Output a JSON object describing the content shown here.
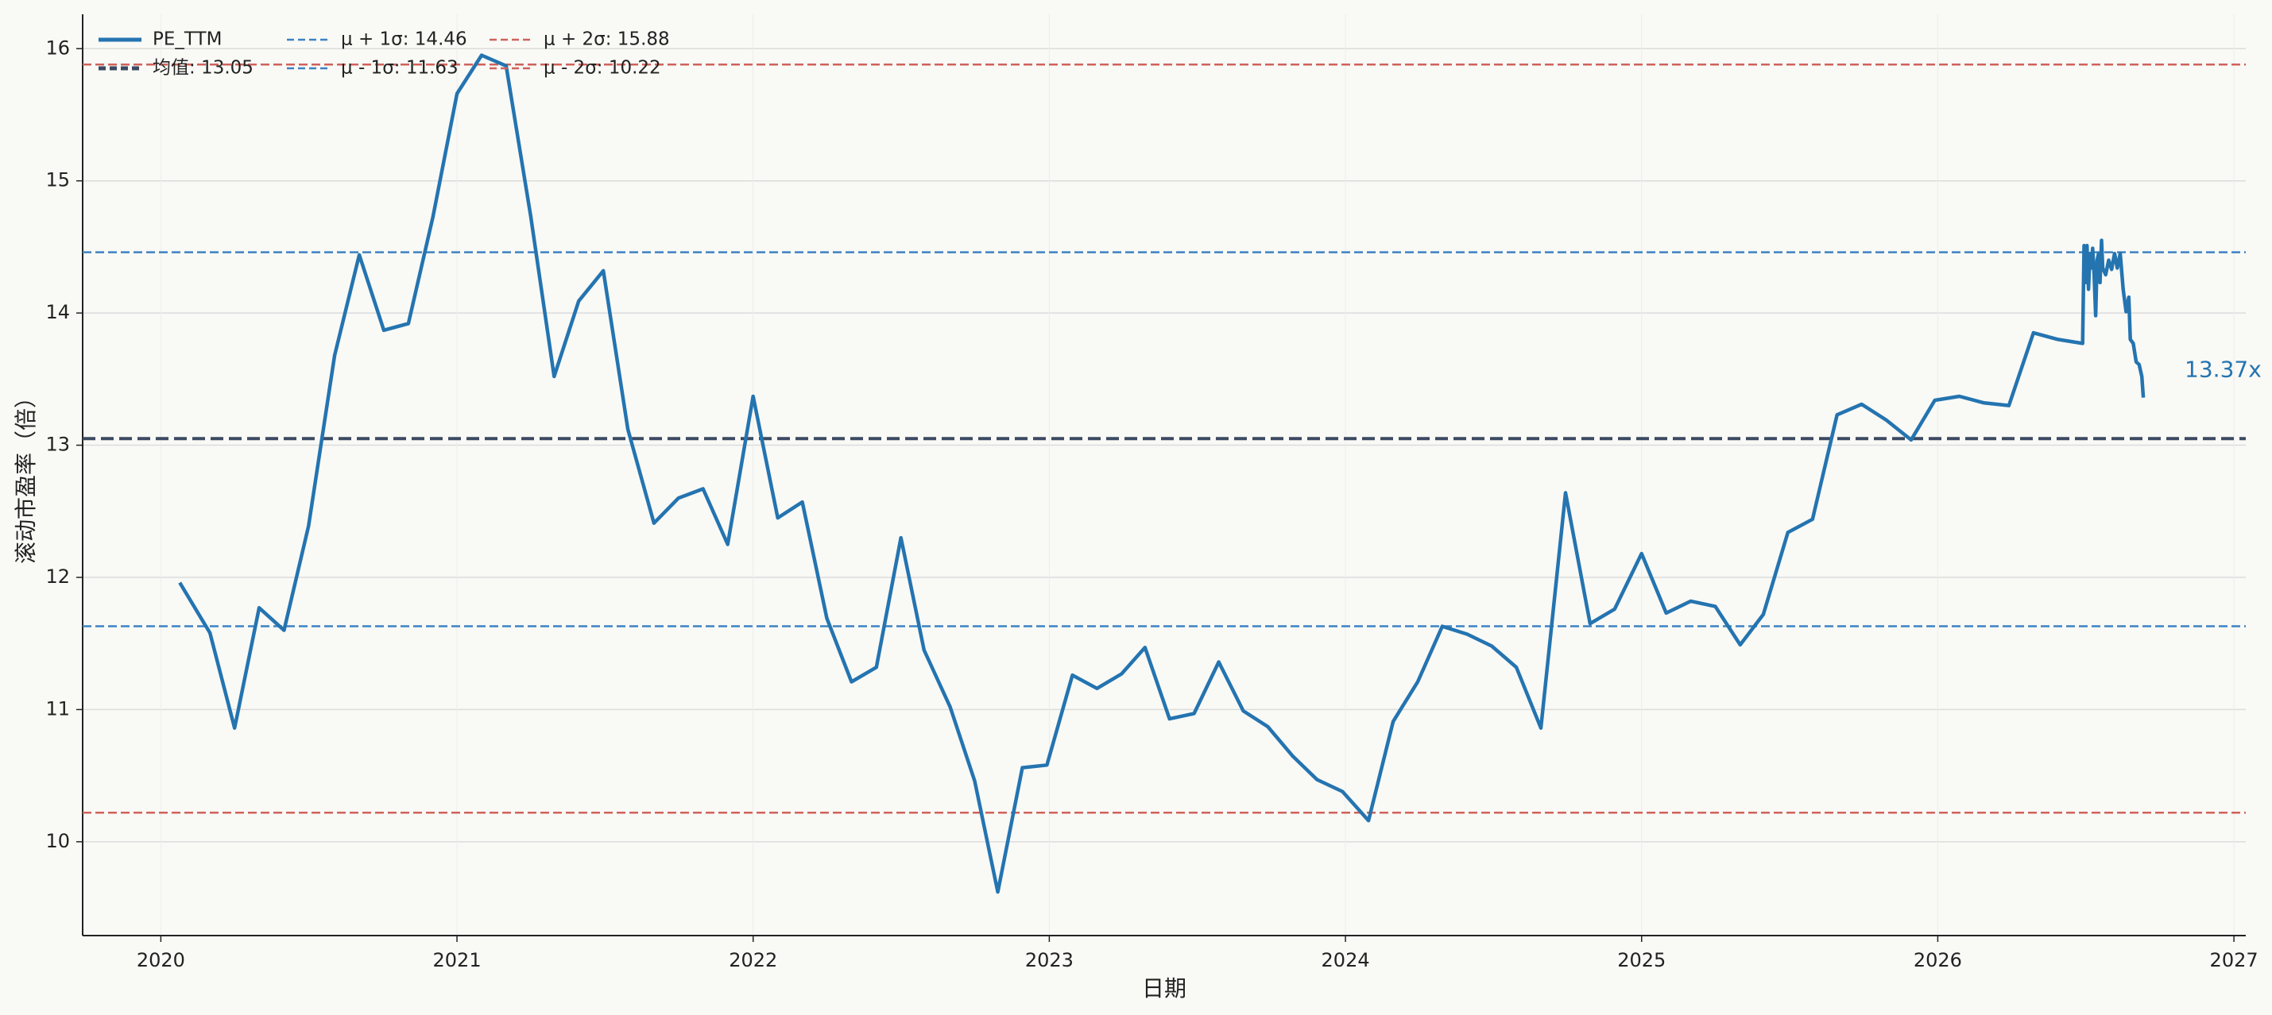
{
  "chart_data": {
    "type": "line",
    "x_label": "日期",
    "y_label": "滚动市盈率（倍）",
    "annotation": "13.37x",
    "xlim": [
      2019.736,
      2027.04
    ],
    "ylim": [
      9.29,
      16.26
    ],
    "xticks": [
      2020,
      2021,
      2022,
      2023,
      2024,
      2025,
      2026,
      2027
    ],
    "yticks": [
      10,
      11,
      12,
      13,
      14,
      15,
      16
    ],
    "grid": true,
    "legend": "upper-left",
    "series": [
      {
        "name": "PE_TTM",
        "color": "#2474b0",
        "x": [
          2020.064,
          2020.166,
          2020.249,
          2020.332,
          2020.416,
          2020.499,
          2020.587,
          2020.67,
          2020.753,
          2020.836,
          2020.919,
          2021.0,
          2021.083,
          2021.166,
          2021.249,
          2021.328,
          2021.411,
          2021.494,
          2021.577,
          2021.665,
          2021.748,
          2021.831,
          2021.914,
          2022.0,
          2022.083,
          2022.166,
          2022.249,
          2022.332,
          2022.416,
          2022.499,
          2022.577,
          2022.665,
          2022.748,
          2022.826,
          2022.909,
          2022.992,
          2023.078,
          2023.161,
          2023.244,
          2023.323,
          2023.406,
          2023.489,
          2023.572,
          2023.655,
          2023.738,
          2023.821,
          2023.904,
          2023.99,
          2024.078,
          2024.161,
          2024.244,
          2024.327,
          2024.411,
          2024.494,
          2024.577,
          2024.66,
          2024.743,
          2024.826,
          2024.909,
          2025.0,
          2025.083,
          2025.166,
          2025.249,
          2025.333,
          2025.411,
          2025.494,
          2025.577,
          2025.66,
          2025.743,
          2025.826,
          2025.91,
          2025.99,
          2026.073,
          2026.156,
          2026.24,
          2026.323,
          2026.406,
          2026.489,
          2026.494,
          2026.499,
          2026.504,
          2026.509,
          2026.514,
          2026.518,
          2026.523,
          2026.528,
          2026.533,
          2026.538,
          2026.543,
          2026.548,
          2026.553,
          2026.557,
          2026.567,
          2026.577,
          2026.587,
          2026.597,
          2026.606,
          2026.616,
          2026.626,
          2026.636,
          2026.645,
          2026.65,
          2026.66,
          2026.67,
          2026.68,
          2026.689,
          2026.694
        ],
        "values": [
          11.96,
          11.58,
          10.86,
          11.77,
          11.6,
          12.39,
          13.68,
          14.44,
          13.87,
          13.92,
          14.73,
          15.66,
          15.95,
          15.87,
          14.73,
          13.52,
          14.09,
          14.32,
          13.12,
          12.41,
          12.6,
          12.67,
          12.25,
          13.37,
          12.45,
          12.57,
          11.69,
          11.21,
          11.32,
          12.3,
          11.45,
          11.02,
          10.46,
          9.62,
          10.56,
          10.58,
          11.26,
          11.16,
          11.27,
          11.47,
          10.93,
          10.97,
          11.36,
          10.99,
          10.87,
          10.65,
          10.47,
          10.38,
          10.16,
          10.91,
          11.21,
          11.63,
          11.57,
          11.48,
          11.32,
          10.86,
          12.64,
          11.65,
          11.76,
          12.18,
          11.73,
          11.82,
          11.78,
          11.49,
          11.72,
          12.34,
          12.44,
          13.23,
          13.31,
          13.19,
          13.04,
          13.34,
          13.37,
          13.32,
          13.3,
          13.85,
          13.8,
          13.77,
          14.51,
          14.23,
          14.51,
          14.18,
          14.45,
          14.34,
          14.49,
          14.29,
          13.98,
          14.4,
          14.45,
          14.23,
          14.55,
          14.34,
          14.29,
          14.4,
          14.33,
          14.45,
          14.34,
          14.45,
          14.18,
          14.01,
          14.12,
          13.8,
          13.77,
          13.63,
          13.61,
          13.52,
          13.36
        ]
      }
    ],
    "hlines": [
      {
        "name": "均值: 13.05",
        "value": 13.05,
        "color": "#3b4a62",
        "width": 4
      },
      {
        "name": "μ + 1σ: 14.46",
        "value": 14.46,
        "color": "#3d82c2",
        "width": 2.5
      },
      {
        "name": "μ - 1σ: 11.63",
        "value": 11.63,
        "color": "#3d82c2",
        "width": 2.5
      },
      {
        "name": "μ + 2σ: 15.88",
        "value": 15.88,
        "color": "#d0625a",
        "width": 2.5
      },
      {
        "name": "μ - 2σ: 10.22",
        "value": 10.22,
        "color": "#d0625a",
        "width": 2.5
      }
    ]
  }
}
